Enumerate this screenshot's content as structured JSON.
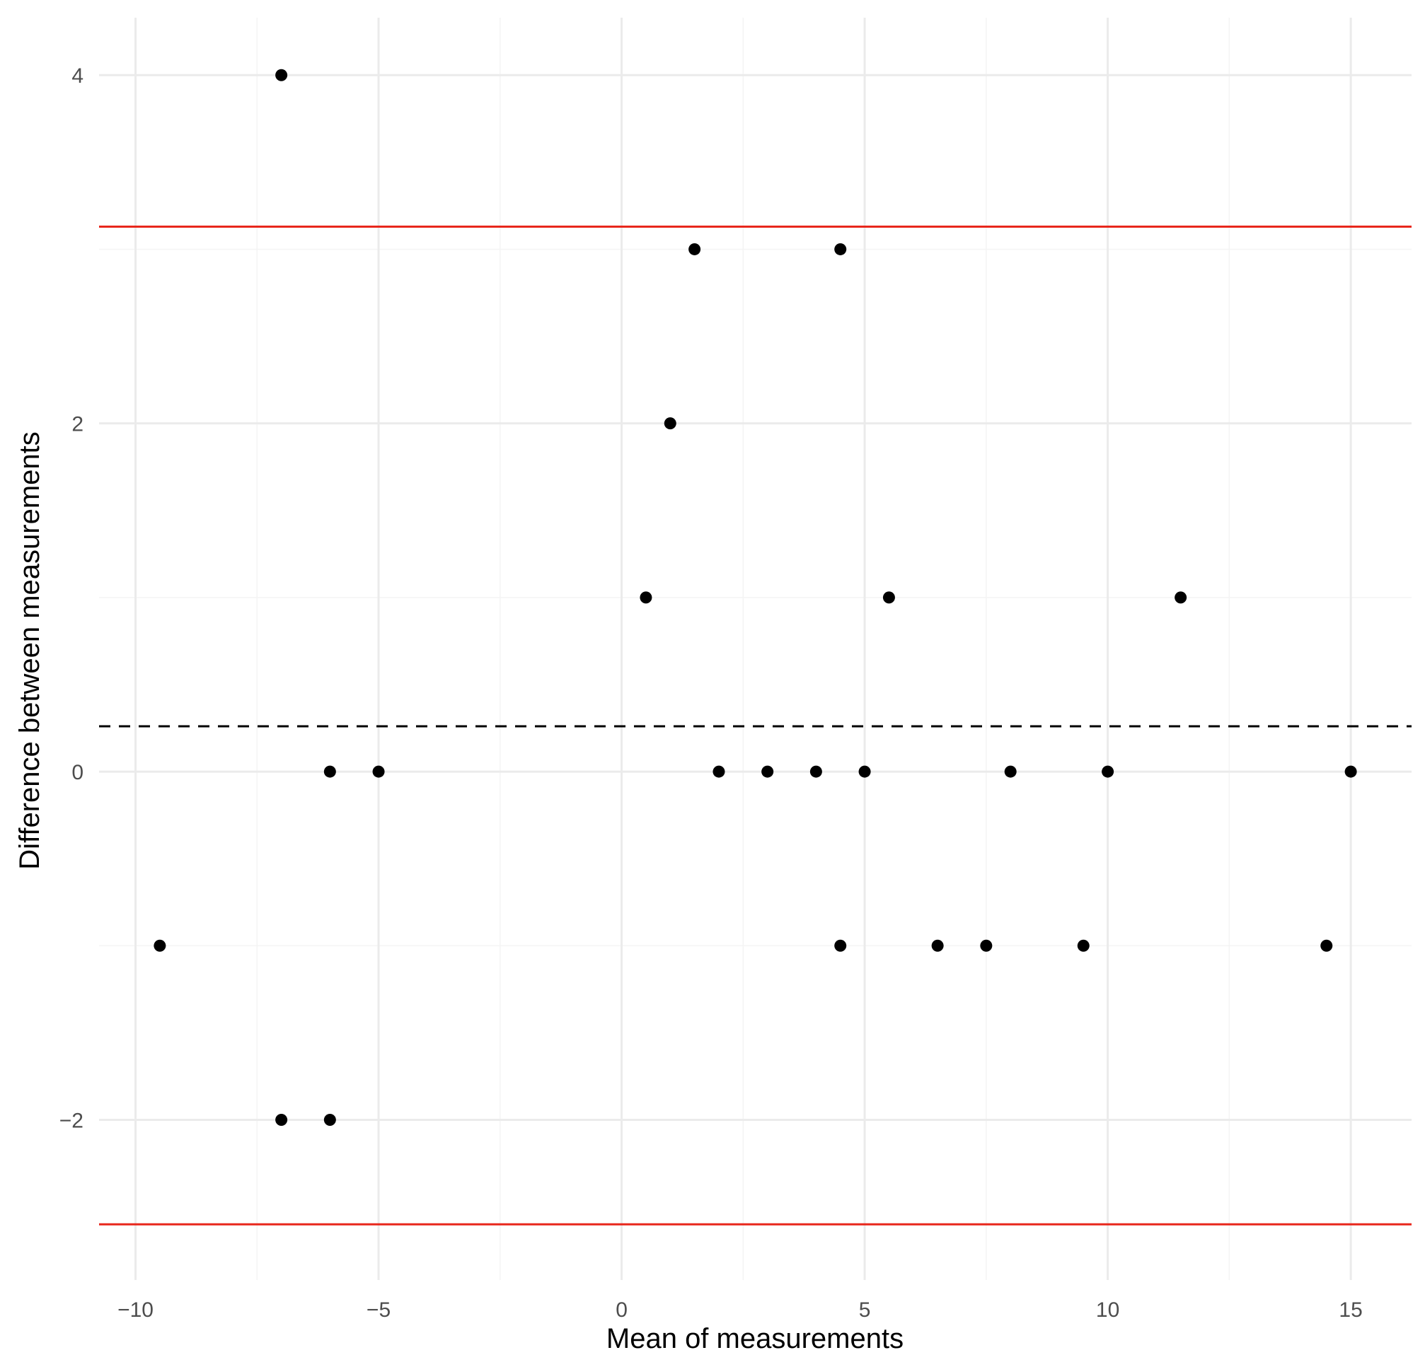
{
  "chart_data": {
    "type": "scatter",
    "title": "",
    "xlabel": "Mean of measurements",
    "ylabel": "Difference between measurements",
    "xlim": [
      -10.75,
      16.25
    ],
    "ylim": [
      -2.92,
      4.33
    ],
    "x_ticks": [
      -10,
      -5,
      0,
      5,
      10,
      15
    ],
    "x_tick_labels": [
      "−10",
      "−5",
      "0",
      "5",
      "10",
      "15"
    ],
    "y_ticks": [
      -2,
      0,
      2,
      4
    ],
    "y_tick_labels": [
      "−2",
      "0",
      "2",
      "4"
    ],
    "grid": true,
    "legend": "none",
    "points": [
      {
        "x": -7.0,
        "y": 4
      },
      {
        "x": 1.5,
        "y": 3
      },
      {
        "x": 4.5,
        "y": 3
      },
      {
        "x": 1.0,
        "y": 2
      },
      {
        "x": 0.5,
        "y": 1
      },
      {
        "x": 5.5,
        "y": 1
      },
      {
        "x": 11.5,
        "y": 1
      },
      {
        "x": -6.0,
        "y": 0
      },
      {
        "x": -5.0,
        "y": 0
      },
      {
        "x": 2.0,
        "y": 0
      },
      {
        "x": 3.0,
        "y": 0
      },
      {
        "x": 4.0,
        "y": 0
      },
      {
        "x": 5.0,
        "y": 0
      },
      {
        "x": 8.0,
        "y": 0
      },
      {
        "x": 10.0,
        "y": 0
      },
      {
        "x": 15.0,
        "y": 0
      },
      {
        "x": -9.5,
        "y": -1
      },
      {
        "x": 4.5,
        "y": -1
      },
      {
        "x": 6.5,
        "y": -1
      },
      {
        "x": 7.5,
        "y": -1
      },
      {
        "x": 9.5,
        "y": -1
      },
      {
        "x": 14.5,
        "y": -1
      },
      {
        "x": -7.0,
        "y": -2
      },
      {
        "x": -6.0,
        "y": -2
      }
    ],
    "reference_lines": [
      {
        "y": 0.26,
        "style": "dashed",
        "color": "#000000"
      },
      {
        "y": 3.13,
        "style": "solid",
        "color": "#e8271c"
      },
      {
        "y": -2.6,
        "style": "solid",
        "color": "#e8271c"
      }
    ],
    "colors": {
      "point": "#000000",
      "limit_line": "#e8271c",
      "grid_major": "#ebebeb",
      "grid_minor": "#f4f4f4"
    }
  }
}
